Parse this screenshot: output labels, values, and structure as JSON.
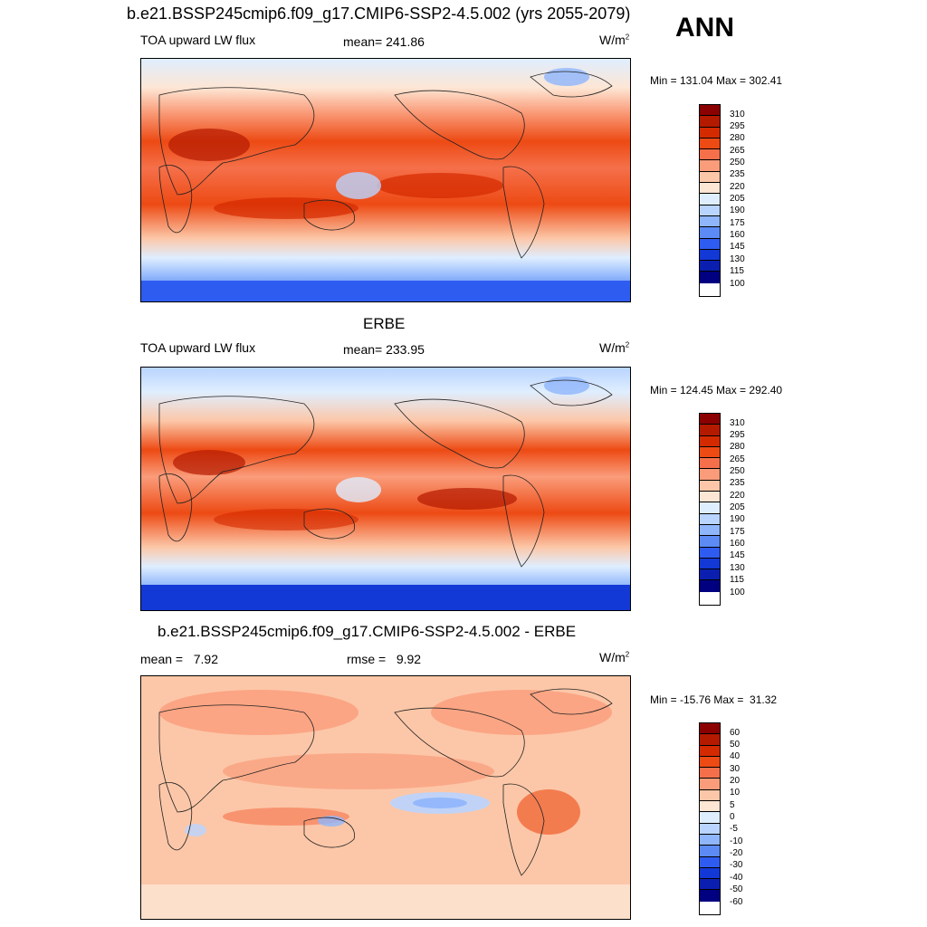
{
  "header": {
    "title": "b.e21.BSSP245cmip6.f09_g17.CMIP6-SSP2-4.5.002 (yrs 2055-2079)",
    "season": "ANN"
  },
  "panels": [
    {
      "title": "",
      "left_label": "TOA upward LW flux",
      "center_label": "mean= 241.86",
      "units": "W/m",
      "units_exp": "2",
      "minmax": "Min = 131.04 Max = 302.41"
    },
    {
      "title": "ERBE",
      "left_label": "TOA upward LW flux",
      "center_label": "mean= 233.95",
      "units": "W/m",
      "units_exp": "2",
      "minmax": "Min = 124.45 Max = 292.40"
    },
    {
      "title": "b.e21.BSSP245cmip6.f09_g17.CMIP6-SSP2-4.5.002 - ERBE",
      "left_label": "mean =   7.92",
      "center_label": "rmse =   9.92",
      "units": "W/m",
      "units_exp": "2",
      "minmax": "Min = -15.76 Max =  31.32"
    }
  ],
  "colorbars": {
    "abs_labels": [
      "310",
      "295",
      "280",
      "265",
      "250",
      "235",
      "220",
      "205",
      "190",
      "175",
      "160",
      "145",
      "130",
      "115",
      "100"
    ],
    "diff_labels": [
      "60",
      "50",
      "40",
      "30",
      "20",
      "10",
      "5",
      "0",
      "-5",
      "-10",
      "-20",
      "-30",
      "-40",
      "-50",
      "-60"
    ],
    "colors": [
      "#8b0000",
      "#b31a00",
      "#d42a00",
      "#ed4a14",
      "#f5704a",
      "#fa9c7a",
      "#fcc7a8",
      "#fde6d4",
      "#dfeeff",
      "#b9d4ff",
      "#8fb5fb",
      "#5c8bf5",
      "#2f5cf0",
      "#1238d6",
      "#0a1fb0",
      "#000080"
    ]
  },
  "chart_data": [
    {
      "type": "heatmap",
      "title": "",
      "subtitle": "TOA upward LW flux",
      "units": "W/m2",
      "mean": 241.86,
      "min": 131.04,
      "max": 302.41,
      "levels": [
        100,
        115,
        130,
        145,
        160,
        175,
        190,
        205,
        220,
        235,
        250,
        265,
        280,
        295,
        310
      ],
      "grid": false,
      "legend_placement": "right"
    },
    {
      "type": "heatmap",
      "title": "ERBE",
      "subtitle": "TOA upward LW flux",
      "units": "W/m2",
      "mean": 233.95,
      "min": 124.45,
      "max": 292.4,
      "levels": [
        100,
        115,
        130,
        145,
        160,
        175,
        190,
        205,
        220,
        235,
        250,
        265,
        280,
        295,
        310
      ],
      "grid": false,
      "legend_placement": "right"
    },
    {
      "type": "heatmap",
      "title": "b.e21.BSSP245cmip6.f09_g17.CMIP6-SSP2-4.5.002 - ERBE",
      "units": "W/m2",
      "mean": 7.92,
      "rmse": 9.92,
      "min": -15.76,
      "max": 31.32,
      "levels": [
        -60,
        -50,
        -40,
        -30,
        -20,
        -10,
        -5,
        0,
        5,
        10,
        20,
        30,
        40,
        50,
        60
      ],
      "grid": false,
      "legend_placement": "right"
    }
  ]
}
